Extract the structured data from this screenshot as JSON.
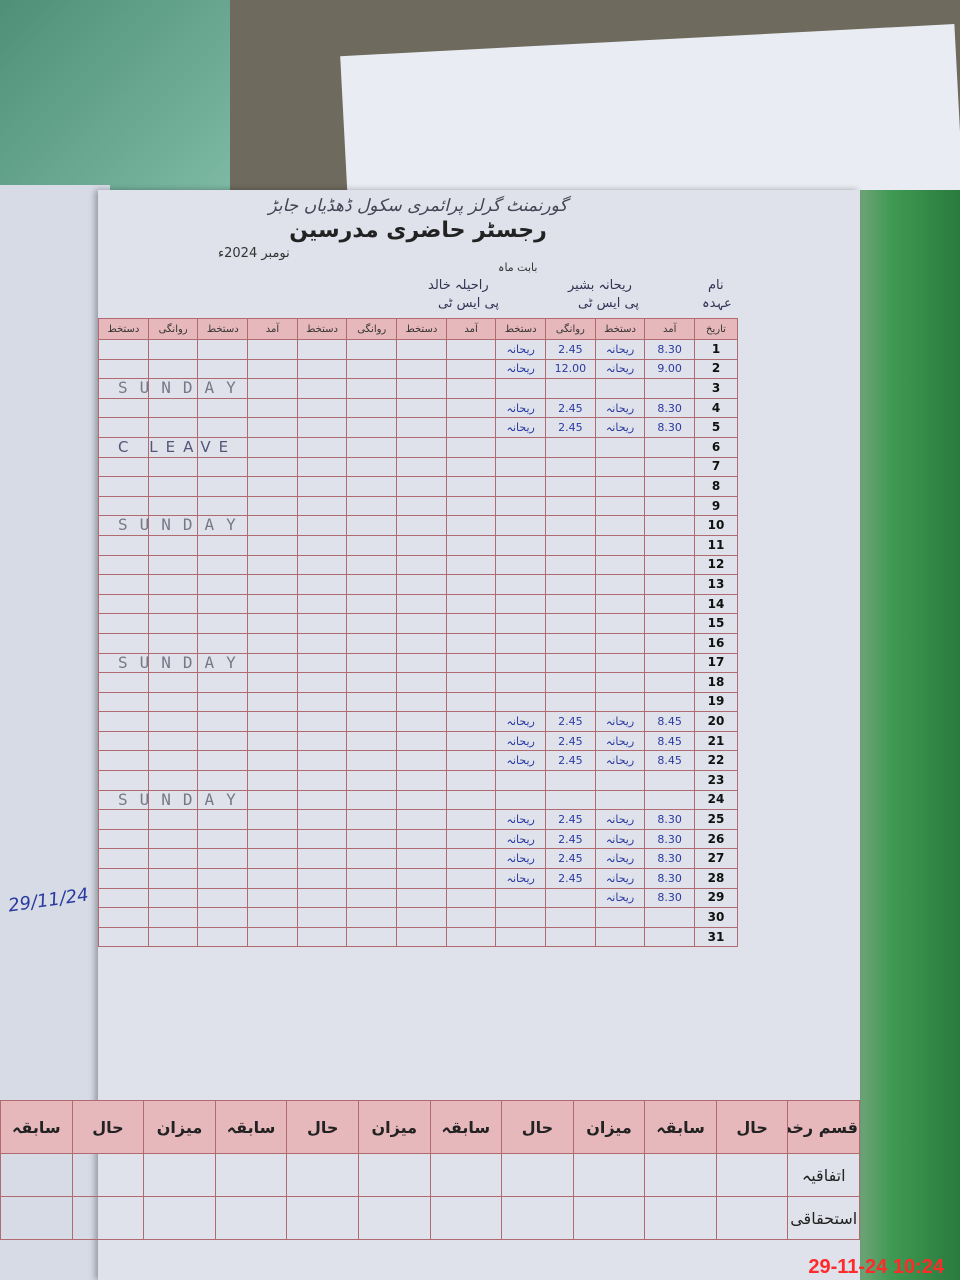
{
  "header": {
    "school_name": "گورنمنٹ گرلز پرائمری سکول ڈھڈیاں جابڑ",
    "title": "رجسٹر حاضری مدرسین",
    "month": "نومبر 2024ء",
    "month_label": "بابت ماہ",
    "name_label": "نام",
    "designation_label": "عہدہ",
    "teachers": [
      {
        "name": "ریحانہ بشیر",
        "designation": "پی ایس ٹی"
      },
      {
        "name": "راحیلہ خالد",
        "designation": "پی ایس ٹی"
      }
    ]
  },
  "columns": [
    "تاریخ",
    "آمد",
    "دستخط",
    "روانگی",
    "دستخط",
    "آمد",
    "دستخط",
    "روانگی",
    "دستخط",
    "آمد",
    "دستخط",
    "روانگی",
    "دستخط"
  ],
  "rows": [
    {
      "date": "1",
      "in": "8.30",
      "sig_in": "ریحانہ",
      "out": "2.45",
      "sig_out": "ریحانہ"
    },
    {
      "date": "2",
      "in": "9.00",
      "sig_in": "ریحانہ",
      "out": "12.00",
      "sig_out": "ریحانہ"
    },
    {
      "date": "3",
      "in": "",
      "sig_in": "",
      "out": "",
      "sig_out": ""
    },
    {
      "date": "4",
      "in": "8.30",
      "sig_in": "ریحانہ",
      "out": "2.45",
      "sig_out": "ریحانہ"
    },
    {
      "date": "5",
      "in": "8.30",
      "sig_in": "ریحانہ",
      "out": "2.45",
      "sig_out": "ریحانہ"
    },
    {
      "date": "6",
      "in": "",
      "sig_in": "",
      "out": "",
      "sig_out": ""
    },
    {
      "date": "7",
      "in": "",
      "sig_in": "",
      "out": "",
      "sig_out": ""
    },
    {
      "date": "8",
      "in": "",
      "sig_in": "",
      "out": "",
      "sig_out": ""
    },
    {
      "date": "9",
      "in": "",
      "sig_in": "",
      "out": "",
      "sig_out": ""
    },
    {
      "date": "10",
      "in": "",
      "sig_in": "",
      "out": "",
      "sig_out": ""
    },
    {
      "date": "11",
      "in": "",
      "sig_in": "",
      "out": "",
      "sig_out": ""
    },
    {
      "date": "12",
      "in": "",
      "sig_in": "",
      "out": "",
      "sig_out": ""
    },
    {
      "date": "13",
      "in": "",
      "sig_in": "",
      "out": "",
      "sig_out": ""
    },
    {
      "date": "14",
      "in": "",
      "sig_in": "",
      "out": "",
      "sig_out": ""
    },
    {
      "date": "15",
      "in": "",
      "sig_in": "",
      "out": "",
      "sig_out": ""
    },
    {
      "date": "16",
      "in": "",
      "sig_in": "",
      "out": "",
      "sig_out": ""
    },
    {
      "date": "17",
      "in": "",
      "sig_in": "",
      "out": "",
      "sig_out": ""
    },
    {
      "date": "18",
      "in": "",
      "sig_in": "",
      "out": "",
      "sig_out": ""
    },
    {
      "date": "19",
      "in": "",
      "sig_in": "",
      "out": "",
      "sig_out": ""
    },
    {
      "date": "20",
      "in": "8.45",
      "sig_in": "ریحانہ",
      "out": "2.45",
      "sig_out": "ریحانہ"
    },
    {
      "date": "21",
      "in": "8.45",
      "sig_in": "ریحانہ",
      "out": "2.45",
      "sig_out": "ریحانہ"
    },
    {
      "date": "22",
      "in": "8.45",
      "sig_in": "ریحانہ",
      "out": "2.45",
      "sig_out": "ریحانہ"
    },
    {
      "date": "23",
      "in": "",
      "sig_in": "",
      "out": "",
      "sig_out": ""
    },
    {
      "date": "24",
      "in": "",
      "sig_in": "",
      "out": "",
      "sig_out": ""
    },
    {
      "date": "25",
      "in": "8.30",
      "sig_in": "ریحانہ",
      "out": "2.45",
      "sig_out": "ریحانہ"
    },
    {
      "date": "26",
      "in": "8.30",
      "sig_in": "ریحانہ",
      "out": "2.45",
      "sig_out": "ریحانہ"
    },
    {
      "date": "27",
      "in": "8.30",
      "sig_in": "ریحانہ",
      "out": "2.45",
      "sig_out": "ریحانہ"
    },
    {
      "date": "28",
      "in": "8.30",
      "sig_in": "ریحانہ",
      "out": "2.45",
      "sig_out": "ریحانہ"
    },
    {
      "date": "29",
      "in": "8.30",
      "sig_in": "ریحانہ",
      "out": "",
      "sig_out": ""
    },
    {
      "date": "30",
      "in": "",
      "sig_in": "",
      "out": "",
      "sig_out": ""
    },
    {
      "date": "31",
      "in": "",
      "sig_in": "",
      "out": "",
      "sig_out": ""
    }
  ],
  "sunday_text": "SUNDAY",
  "leave_text": "C LEAVE",
  "signature": {
    "text": "29/11/24"
  },
  "leave_summary": {
    "headers": [
      "قسم رخصت",
      "حال",
      "سابقہ",
      "میزان",
      "حال",
      "سابقہ",
      "میزان",
      "حال",
      "سابقہ",
      "میزان",
      "حال",
      "سابقہ"
    ],
    "row_labels": [
      "اتفاقیہ",
      "استحقاقی"
    ]
  },
  "timestamp": "29-11-24  10:24",
  "colors": {
    "header_pink": "#e7b8bb",
    "rule_red": "#b06a70",
    "ink_blue": "#2a3aa0",
    "stamp_red": "#ff2a2a"
  }
}
